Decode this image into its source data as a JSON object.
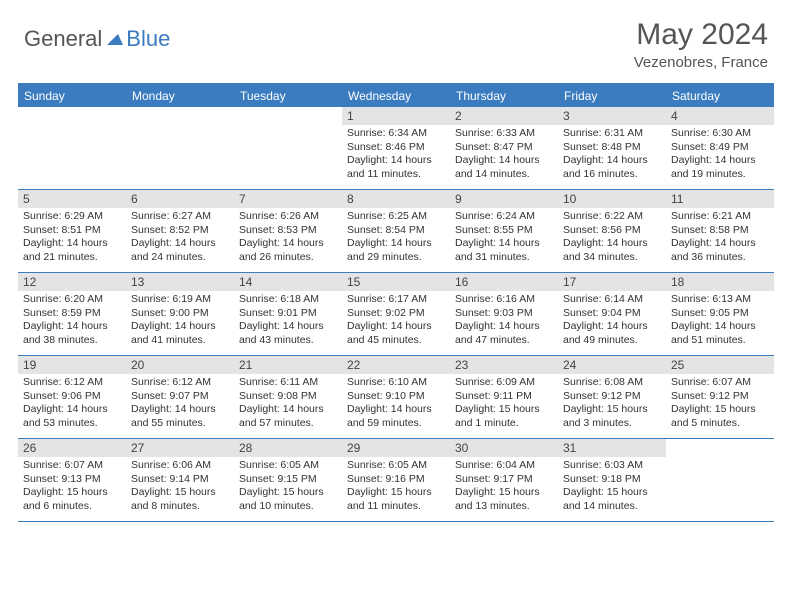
{
  "brand": {
    "part1": "General",
    "part2": "Blue"
  },
  "title": "May 2024",
  "location": "Vezenobres, France",
  "colors": {
    "accent": "#3b7bbf",
    "dayband": "#e4e4e4",
    "text": "#555"
  },
  "weekdays": [
    "Sunday",
    "Monday",
    "Tuesday",
    "Wednesday",
    "Thursday",
    "Friday",
    "Saturday"
  ],
  "weeks": [
    [
      {
        "n": "",
        "sr": "",
        "ss": "",
        "dl": ""
      },
      {
        "n": "",
        "sr": "",
        "ss": "",
        "dl": ""
      },
      {
        "n": "",
        "sr": "",
        "ss": "",
        "dl": ""
      },
      {
        "n": "1",
        "sr": "Sunrise: 6:34 AM",
        "ss": "Sunset: 8:46 PM",
        "dl": "Daylight: 14 hours and 11 minutes."
      },
      {
        "n": "2",
        "sr": "Sunrise: 6:33 AM",
        "ss": "Sunset: 8:47 PM",
        "dl": "Daylight: 14 hours and 14 minutes."
      },
      {
        "n": "3",
        "sr": "Sunrise: 6:31 AM",
        "ss": "Sunset: 8:48 PM",
        "dl": "Daylight: 14 hours and 16 minutes."
      },
      {
        "n": "4",
        "sr": "Sunrise: 6:30 AM",
        "ss": "Sunset: 8:49 PM",
        "dl": "Daylight: 14 hours and 19 minutes."
      }
    ],
    [
      {
        "n": "5",
        "sr": "Sunrise: 6:29 AM",
        "ss": "Sunset: 8:51 PM",
        "dl": "Daylight: 14 hours and 21 minutes."
      },
      {
        "n": "6",
        "sr": "Sunrise: 6:27 AM",
        "ss": "Sunset: 8:52 PM",
        "dl": "Daylight: 14 hours and 24 minutes."
      },
      {
        "n": "7",
        "sr": "Sunrise: 6:26 AM",
        "ss": "Sunset: 8:53 PM",
        "dl": "Daylight: 14 hours and 26 minutes."
      },
      {
        "n": "8",
        "sr": "Sunrise: 6:25 AM",
        "ss": "Sunset: 8:54 PM",
        "dl": "Daylight: 14 hours and 29 minutes."
      },
      {
        "n": "9",
        "sr": "Sunrise: 6:24 AM",
        "ss": "Sunset: 8:55 PM",
        "dl": "Daylight: 14 hours and 31 minutes."
      },
      {
        "n": "10",
        "sr": "Sunrise: 6:22 AM",
        "ss": "Sunset: 8:56 PM",
        "dl": "Daylight: 14 hours and 34 minutes."
      },
      {
        "n": "11",
        "sr": "Sunrise: 6:21 AM",
        "ss": "Sunset: 8:58 PM",
        "dl": "Daylight: 14 hours and 36 minutes."
      }
    ],
    [
      {
        "n": "12",
        "sr": "Sunrise: 6:20 AM",
        "ss": "Sunset: 8:59 PM",
        "dl": "Daylight: 14 hours and 38 minutes."
      },
      {
        "n": "13",
        "sr": "Sunrise: 6:19 AM",
        "ss": "Sunset: 9:00 PM",
        "dl": "Daylight: 14 hours and 41 minutes."
      },
      {
        "n": "14",
        "sr": "Sunrise: 6:18 AM",
        "ss": "Sunset: 9:01 PM",
        "dl": "Daylight: 14 hours and 43 minutes."
      },
      {
        "n": "15",
        "sr": "Sunrise: 6:17 AM",
        "ss": "Sunset: 9:02 PM",
        "dl": "Daylight: 14 hours and 45 minutes."
      },
      {
        "n": "16",
        "sr": "Sunrise: 6:16 AM",
        "ss": "Sunset: 9:03 PM",
        "dl": "Daylight: 14 hours and 47 minutes."
      },
      {
        "n": "17",
        "sr": "Sunrise: 6:14 AM",
        "ss": "Sunset: 9:04 PM",
        "dl": "Daylight: 14 hours and 49 minutes."
      },
      {
        "n": "18",
        "sr": "Sunrise: 6:13 AM",
        "ss": "Sunset: 9:05 PM",
        "dl": "Daylight: 14 hours and 51 minutes."
      }
    ],
    [
      {
        "n": "19",
        "sr": "Sunrise: 6:12 AM",
        "ss": "Sunset: 9:06 PM",
        "dl": "Daylight: 14 hours and 53 minutes."
      },
      {
        "n": "20",
        "sr": "Sunrise: 6:12 AM",
        "ss": "Sunset: 9:07 PM",
        "dl": "Daylight: 14 hours and 55 minutes."
      },
      {
        "n": "21",
        "sr": "Sunrise: 6:11 AM",
        "ss": "Sunset: 9:08 PM",
        "dl": "Daylight: 14 hours and 57 minutes."
      },
      {
        "n": "22",
        "sr": "Sunrise: 6:10 AM",
        "ss": "Sunset: 9:10 PM",
        "dl": "Daylight: 14 hours and 59 minutes."
      },
      {
        "n": "23",
        "sr": "Sunrise: 6:09 AM",
        "ss": "Sunset: 9:11 PM",
        "dl": "Daylight: 15 hours and 1 minute."
      },
      {
        "n": "24",
        "sr": "Sunrise: 6:08 AM",
        "ss": "Sunset: 9:12 PM",
        "dl": "Daylight: 15 hours and 3 minutes."
      },
      {
        "n": "25",
        "sr": "Sunrise: 6:07 AM",
        "ss": "Sunset: 9:12 PM",
        "dl": "Daylight: 15 hours and 5 minutes."
      }
    ],
    [
      {
        "n": "26",
        "sr": "Sunrise: 6:07 AM",
        "ss": "Sunset: 9:13 PM",
        "dl": "Daylight: 15 hours and 6 minutes."
      },
      {
        "n": "27",
        "sr": "Sunrise: 6:06 AM",
        "ss": "Sunset: 9:14 PM",
        "dl": "Daylight: 15 hours and 8 minutes."
      },
      {
        "n": "28",
        "sr": "Sunrise: 6:05 AM",
        "ss": "Sunset: 9:15 PM",
        "dl": "Daylight: 15 hours and 10 minutes."
      },
      {
        "n": "29",
        "sr": "Sunrise: 6:05 AM",
        "ss": "Sunset: 9:16 PM",
        "dl": "Daylight: 15 hours and 11 minutes."
      },
      {
        "n": "30",
        "sr": "Sunrise: 6:04 AM",
        "ss": "Sunset: 9:17 PM",
        "dl": "Daylight: 15 hours and 13 minutes."
      },
      {
        "n": "31",
        "sr": "Sunrise: 6:03 AM",
        "ss": "Sunset: 9:18 PM",
        "dl": "Daylight: 15 hours and 14 minutes."
      },
      {
        "n": "",
        "sr": "",
        "ss": "",
        "dl": ""
      }
    ]
  ]
}
